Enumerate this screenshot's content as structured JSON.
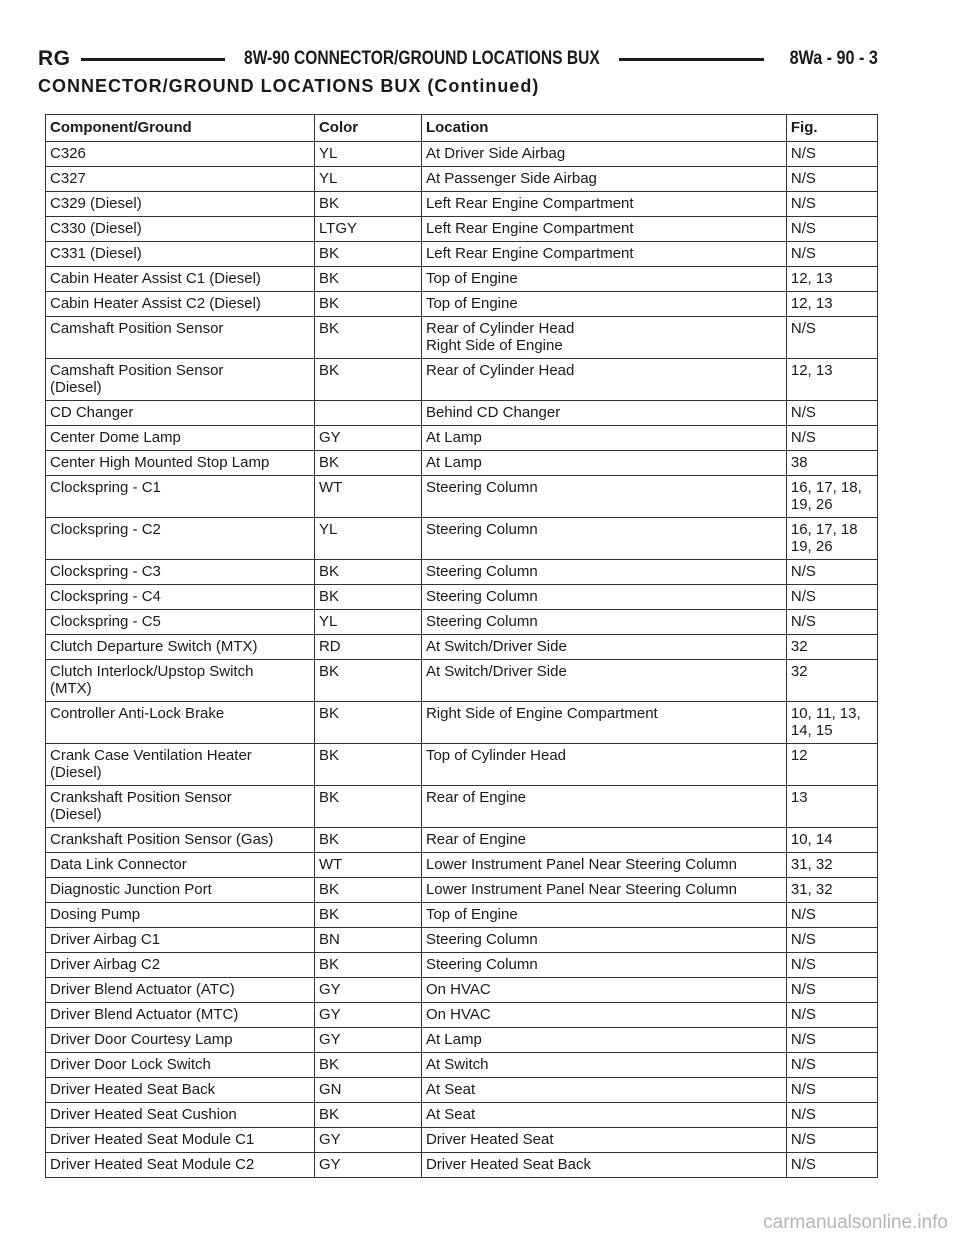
{
  "header": {
    "left": "RG",
    "title": "8W-90 CONNECTOR/GROUND LOCATIONS BUX",
    "page": "8Wa - 90 - 3"
  },
  "section_title": "CONNECTOR/GROUND LOCATIONS BUX (Continued)",
  "table": {
    "columns": [
      "Component/Ground",
      "Color",
      "Location",
      "Fig."
    ],
    "rows": [
      [
        "C326",
        "YL",
        "At Driver Side Airbag",
        "N/S"
      ],
      [
        "C327",
        "YL",
        "At Passenger Side Airbag",
        "N/S"
      ],
      [
        "C329 (Diesel)",
        "BK",
        "Left Rear Engine Compartment",
        "N/S"
      ],
      [
        "C330 (Diesel)",
        "LTGY",
        "Left Rear Engine Compartment",
        "N/S"
      ],
      [
        "C331 (Diesel)",
        "BK",
        "Left Rear Engine Compartment",
        "N/S"
      ],
      [
        "Cabin Heater Assist C1 (Diesel)",
        "BK",
        "Top of Engine",
        "12, 13"
      ],
      [
        "Cabin Heater Assist C2 (Diesel)",
        "BK",
        "Top of Engine",
        "12, 13"
      ],
      [
        "Camshaft Position Sensor",
        "BK",
        "Rear of Cylinder Head\nRight Side of Engine",
        "N/S"
      ],
      [
        "Camshaft Position Sensor\n(Diesel)",
        "BK",
        "Rear of Cylinder Head",
        "12, 13"
      ],
      [
        "CD Changer",
        "",
        "Behind CD Changer",
        "N/S"
      ],
      [
        "Center Dome Lamp",
        "GY",
        "At Lamp",
        "N/S"
      ],
      [
        "Center High Mounted Stop Lamp",
        "BK",
        "At Lamp",
        "38"
      ],
      [
        "Clockspring - C1",
        "WT",
        "Steering Column",
        "16, 17, 18,\n19, 26"
      ],
      [
        "Clockspring - C2",
        "YL",
        "Steering Column",
        "16, 17, 18\n19, 26"
      ],
      [
        "Clockspring - C3",
        "BK",
        "Steering Column",
        "N/S"
      ],
      [
        "Clockspring - C4",
        "BK",
        "Steering Column",
        "N/S"
      ],
      [
        "Clockspring - C5",
        "YL",
        "Steering Column",
        "N/S"
      ],
      [
        "Clutch Departure Switch (MTX)",
        "RD",
        "At Switch/Driver Side",
        "32"
      ],
      [
        "Clutch Interlock/Upstop Switch\n(MTX)",
        "BK",
        "At Switch/Driver Side",
        "32"
      ],
      [
        "Controller Anti-Lock Brake",
        "BK",
        "Right Side of Engine Compartment",
        "10, 11, 13,\n14, 15"
      ],
      [
        "Crank Case Ventilation Heater\n(Diesel)",
        "BK",
        "Top of Cylinder Head",
        "12"
      ],
      [
        "Crankshaft Position Sensor\n(Diesel)",
        "BK",
        "Rear of Engine",
        "13"
      ],
      [
        "Crankshaft Position Sensor (Gas)",
        "BK",
        "Rear of Engine",
        "10, 14"
      ],
      [
        "Data Link Connector",
        "WT",
        "Lower Instrument Panel Near Steering Column",
        "31, 32"
      ],
      [
        "Diagnostic Junction Port",
        "BK",
        "Lower Instrument Panel Near Steering Column",
        "31, 32"
      ],
      [
        "Dosing Pump",
        "BK",
        "Top of Engine",
        "N/S"
      ],
      [
        "Driver Airbag C1",
        "BN",
        "Steering Column",
        "N/S"
      ],
      [
        "Driver Airbag C2",
        "BK",
        "Steering Column",
        "N/S"
      ],
      [
        "Driver Blend Actuator (ATC)",
        "GY",
        "On HVAC",
        "N/S"
      ],
      [
        "Driver Blend Actuator (MTC)",
        "GY",
        "On HVAC",
        "N/S"
      ],
      [
        "Driver Door Courtesy Lamp",
        "GY",
        "At Lamp",
        "N/S"
      ],
      [
        "Driver Door Lock Switch",
        "BK",
        "At Switch",
        "N/S"
      ],
      [
        "Driver Heated Seat Back",
        "GN",
        "At Seat",
        "N/S"
      ],
      [
        "Driver Heated Seat Cushion",
        "BK",
        "At Seat",
        "N/S"
      ],
      [
        "Driver Heated Seat Module C1",
        "GY",
        "Driver Heated Seat",
        "N/S"
      ],
      [
        "Driver Heated Seat Module C2",
        "GY",
        "Driver Heated Seat Back",
        "N/S"
      ]
    ]
  },
  "watermark": "carmanualsonline.info"
}
